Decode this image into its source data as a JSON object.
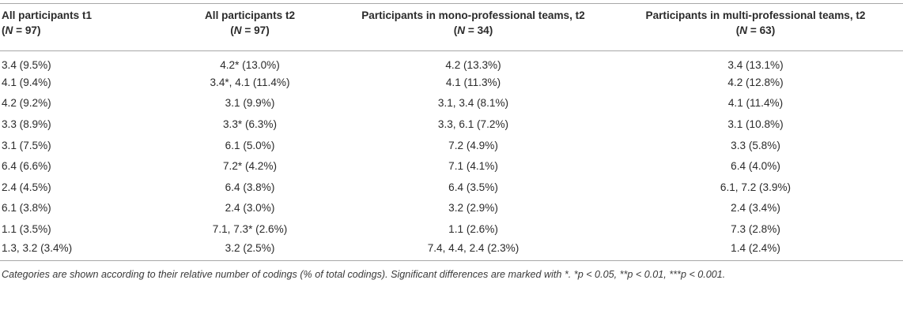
{
  "table": {
    "headers": [
      {
        "title": "All participants t1",
        "n_label": "N",
        "n_value": "= 97)"
      },
      {
        "title": "All participants t2",
        "n_label": "N",
        "n_value": "= 97)"
      },
      {
        "title": "Participants in mono-professional teams, t2",
        "n_label": "N",
        "n_value": "= 34)"
      },
      {
        "title": "Participants in multi-professional teams, t2",
        "n_label": "N",
        "n_value": "= 63)"
      }
    ],
    "rows": [
      [
        "3.4 (9.5%)",
        "4.2* (13.0%)",
        "4.2 (13.3%)",
        "3.4 (13.1%)"
      ],
      [
        "4.1 (9.4%)",
        "3.4*, 4.1 (11.4%)",
        "4.1 (11.3%)",
        "4.2 (12.8%)"
      ],
      [
        "4.2 (9.2%)",
        "3.1 (9.9%)",
        "3.1, 3.4 (8.1%)",
        "4.1 (11.4%)"
      ],
      [
        "3.3 (8.9%)",
        "3.3* (6.3%)",
        "3.3, 6.1 (7.2%)",
        "3.1 (10.8%)"
      ],
      [
        "3.1 (7.5%)",
        "6.1 (5.0%)",
        "7.2 (4.9%)",
        "3.3 (5.8%)"
      ],
      [
        "6.4 (6.6%)",
        "7.2* (4.2%)",
        "7.1 (4.1%)",
        "6.4 (4.0%)"
      ],
      [
        "2.4 (4.5%)",
        "6.4 (3.8%)",
        "6.4 (3.5%)",
        "6.1, 7.2 (3.9%)"
      ],
      [
        "6.1 (3.8%)",
        "2.4 (3.0%)",
        "3.2 (2.9%)",
        "2.4 (3.4%)"
      ],
      [
        "1.1 (3.5%)",
        "7.1, 7.3* (2.6%)",
        "1.1 (2.6%)",
        "7.3 (2.8%)"
      ],
      [
        "1.3, 3.2 (3.4%)",
        "3.2 (2.5%)",
        "7.4, 4.4, 2.4 (2.3%)",
        "1.4 (2.4%)"
      ]
    ],
    "footnote": "Categories are shown according to their relative number of codings (% of total codings). Significant differences are marked with *. *p < 0.05, **p < 0.01, ***p < 0.001."
  }
}
